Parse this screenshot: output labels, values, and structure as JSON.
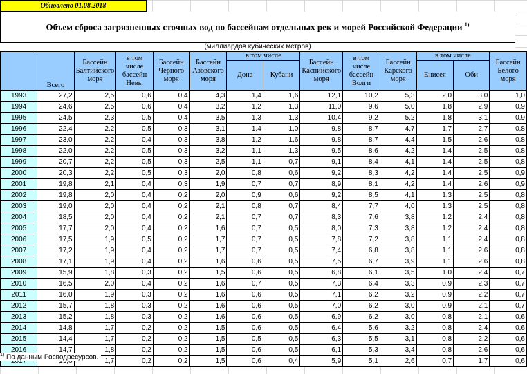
{
  "updated": "Обновлено 01.08.2018",
  "title": "Объем сброса загрязненных сточных вод по бассейнам отдельных рек и морей Российской Федерации",
  "title_note": "1)",
  "units": "(миллиардов кубических метров)",
  "headers": {
    "total": "Всего",
    "baltic": "Бассейн Балтийского моря",
    "neva": "в том числе бассейн Невы",
    "black": "Бассейн Черного моря",
    "azov": "Бассейн Азовского моря",
    "azov_group": "в том числе",
    "don": "Дона",
    "kuban": "Кубани",
    "caspian": "Бассейн Каспийского моря",
    "volga": "в том числе бассейн Волги",
    "kara": "Бассейн Карского моря",
    "kara_group": "в том числе",
    "yenisei": "Енисея",
    "ob": "Оби",
    "white": "Бассейн Белого моря"
  },
  "rows": [
    {
      "year": "1993",
      "total": "27,2",
      "baltic": "2,5",
      "neva": "0,6",
      "black": "0,4",
      "azov": "4,3",
      "don": "1,4",
      "kuban": "1,6",
      "caspian": "12,1",
      "volga": "10,2",
      "kara": "5,3",
      "yenisei": "2,0",
      "ob": "3,0",
      "white": "1,0"
    },
    {
      "year": "1994",
      "total": "24,6",
      "baltic": "2,5",
      "neva": "0,6",
      "black": "0,4",
      "azov": "3,2",
      "don": "1,2",
      "kuban": "1,3",
      "caspian": "11,0",
      "volga": "9,6",
      "kara": "5,0",
      "yenisei": "1,8",
      "ob": "2,9",
      "white": "0,9"
    },
    {
      "year": "1995",
      "total": "24,5",
      "baltic": "2,3",
      "neva": "0,5",
      "black": "0,4",
      "azov": "3,5",
      "don": "1,3",
      "kuban": "1,3",
      "caspian": "10,4",
      "volga": "9,2",
      "kara": "5,2",
      "yenisei": "1,8",
      "ob": "3,1",
      "white": "0,9"
    },
    {
      "year": "1996",
      "total": "22,4",
      "baltic": "2,2",
      "neva": "0,5",
      "black": "0,3",
      "azov": "3,1",
      "don": "1,4",
      "kuban": "1,0",
      "caspian": "9,8",
      "volga": "8,7",
      "kara": "4,7",
      "yenisei": "1,7",
      "ob": "2,7",
      "white": "0,8"
    },
    {
      "year": "1997",
      "total": "23,0",
      "baltic": "2,2",
      "neva": "0,4",
      "black": "0,3",
      "azov": "3,8",
      "don": "1,2",
      "kuban": "1,6",
      "caspian": "9,8",
      "volga": "8,7",
      "kara": "4,4",
      "yenisei": "1,5",
      "ob": "2,6",
      "white": "0,8"
    },
    {
      "year": "1998",
      "total": "22,0",
      "baltic": "2,2",
      "neva": "0,5",
      "black": "0,3",
      "azov": "3,2",
      "don": "1,1",
      "kuban": "1,3",
      "caspian": "9,5",
      "volga": "8,6",
      "kara": "4,2",
      "yenisei": "1,4",
      "ob": "2,5",
      "white": "0,8"
    },
    {
      "year": "1999",
      "total": "20,7",
      "baltic": "2,2",
      "neva": "0,5",
      "black": "0,3",
      "azov": "2,5",
      "don": "1,1",
      "kuban": "0,7",
      "caspian": "9,1",
      "volga": "8,4",
      "kara": "4,1",
      "yenisei": "1,4",
      "ob": "2,5",
      "white": "0,8"
    },
    {
      "year": "2000",
      "total": "20,3",
      "baltic": "2,2",
      "neva": "0,5",
      "black": "0,3",
      "azov": "2,0",
      "don": "0,8",
      "kuban": "0,6",
      "caspian": "9,2",
      "volga": "8,3",
      "kara": "4,2",
      "yenisei": "1,4",
      "ob": "2,5",
      "white": "0,9"
    },
    {
      "year": "2001",
      "total": "19,8",
      "baltic": "2,1",
      "neva": "0,4",
      "black": "0,3",
      "azov": "1,9",
      "don": "0,7",
      "kuban": "0,7",
      "caspian": "8,9",
      "volga": "8,1",
      "kara": "4,2",
      "yenisei": "1,4",
      "ob": "2,6",
      "white": "0,9"
    },
    {
      "year": "2002",
      "total": "19,8",
      "baltic": "2,0",
      "neva": "0,4",
      "black": "0,2",
      "azov": "2,0",
      "don": "0,9",
      "kuban": "0,6",
      "caspian": "9,2",
      "volga": "8,5",
      "kara": "4,1",
      "yenisei": "1,3",
      "ob": "2,5",
      "white": "0,8"
    },
    {
      "year": "2003",
      "total": "19,0",
      "baltic": "2,0",
      "neva": "0,4",
      "black": "0,2",
      "azov": "2,1",
      "don": "0,8",
      "kuban": "0,7",
      "caspian": "8,4",
      "volga": "7,7",
      "kara": "4,0",
      "yenisei": "1,3",
      "ob": "2,5",
      "white": "0,8"
    },
    {
      "year": "2004",
      "total": "18,5",
      "baltic": "2,0",
      "neva": "0,4",
      "black": "0,2",
      "azov": "2,1",
      "don": "0,7",
      "kuban": "0,7",
      "caspian": "8,3",
      "volga": "7,6",
      "kara": "3,8",
      "yenisei": "1,2",
      "ob": "2,4",
      "white": "0,8"
    },
    {
      "year": "2005",
      "total": "17,7",
      "baltic": "2,0",
      "neva": "0,4",
      "black": "0,2",
      "azov": "1,6",
      "don": "0,7",
      "kuban": "0,5",
      "caspian": "8,0",
      "volga": "7,3",
      "kara": "3,8",
      "yenisei": "1,2",
      "ob": "2,4",
      "white": "0,8"
    },
    {
      "year": "2006",
      "total": "17,5",
      "baltic": "1,9",
      "neva": "0,5",
      "black": "0,2",
      "azov": "1,7",
      "don": "0,7",
      "kuban": "0,5",
      "caspian": "7,8",
      "volga": "7,2",
      "kara": "3,8",
      "yenisei": "1,1",
      "ob": "2,4",
      "white": "0,8"
    },
    {
      "year": "2007",
      "total": "17,2",
      "baltic": "1,9",
      "neva": "0,4",
      "black": "0,2",
      "azov": "1,7",
      "don": "0,7",
      "kuban": "0,5",
      "caspian": "7,4",
      "volga": "6,8",
      "kara": "3,8",
      "yenisei": "1,1",
      "ob": "2,6",
      "white": "0,8"
    },
    {
      "year": "2008",
      "total": "17,1",
      "baltic": "1,9",
      "neva": "0,4",
      "black": "0,2",
      "azov": "1,6",
      "don": "0,6",
      "kuban": "0,5",
      "caspian": "7,5",
      "volga": "6,7",
      "kara": "3,9",
      "yenisei": "1,1",
      "ob": "2,6",
      "white": "0,8"
    },
    {
      "year": "2009",
      "total": "15,9",
      "baltic": "1,8",
      "neva": "0,3",
      "black": "0,2",
      "azov": "1,5",
      "don": "0,6",
      "kuban": "0,5",
      "caspian": "6,8",
      "volga": "6,1",
      "kara": "3,5",
      "yenisei": "1,0",
      "ob": "2,4",
      "white": "0,7"
    },
    {
      "year": "2010",
      "total": "16,5",
      "baltic": "2,0",
      "neva": "0,4",
      "black": "0,2",
      "azov": "1,6",
      "don": "0,7",
      "kuban": "0,5",
      "caspian": "7,3",
      "volga": "6,4",
      "kara": "3,3",
      "yenisei": "0,9",
      "ob": "2,3",
      "white": "0,7"
    },
    {
      "year": "2011",
      "total": "16,0",
      "baltic": "1,9",
      "neva": "0,3",
      "black": "0,2",
      "azov": "1,6",
      "don": "0,6",
      "kuban": "0,5",
      "caspian": "7,1",
      "volga": "6,2",
      "kara": "3,2",
      "yenisei": "0,9",
      "ob": "2,2",
      "white": "0,7"
    },
    {
      "year": "2012",
      "total": "15,7",
      "baltic": "1,8",
      "neva": "0,3",
      "black": "0,2",
      "azov": "1,6",
      "don": "0,6",
      "kuban": "0,5",
      "caspian": "7,0",
      "volga": "6,2",
      "kara": "3,0",
      "yenisei": "0,9",
      "ob": "2,1",
      "white": "0,7"
    },
    {
      "year": "2013",
      "total": "15,2",
      "baltic": "1,8",
      "neva": "0,3",
      "black": "0,2",
      "azov": "1,6",
      "don": "0,6",
      "kuban": "0,5",
      "caspian": "6,9",
      "volga": "6,2",
      "kara": "3,0",
      "yenisei": "0,8",
      "ob": "2,1",
      "white": "0,6"
    },
    {
      "year": "2014",
      "total": "14,8",
      "baltic": "1,7",
      "neva": "0,2",
      "black": "0,2",
      "azov": "1,5",
      "don": "0,6",
      "kuban": "0,5",
      "caspian": "6,4",
      "volga": "5,6",
      "kara": "3,2",
      "yenisei": "0,8",
      "ob": "2,4",
      "white": "0,6"
    },
    {
      "year": "2015",
      "total": "14,4",
      "baltic": "1,7",
      "neva": "0,2",
      "black": "0,2",
      "azov": "1,5",
      "don": "0,5",
      "kuban": "0,5",
      "caspian": "6,3",
      "volga": "5,5",
      "kara": "3,1",
      "yenisei": "0,8",
      "ob": "2,2",
      "white": "0,6"
    },
    {
      "year": "2016",
      "total": "14,7",
      "baltic": "1,8",
      "neva": "0,2",
      "black": "0,2",
      "azov": "1,5",
      "don": "0,6",
      "kuban": "0,5",
      "caspian": "6,1",
      "volga": "5,3",
      "kara": "3,4",
      "yenisei": "0,8",
      "ob": "2,6",
      "white": "0,6"
    },
    {
      "year": "2017",
      "total": "13,6",
      "baltic": "1,7",
      "neva": "0,2",
      "black": "0,2",
      "azov": "1,5",
      "don": "0,6",
      "kuban": "0,4",
      "caspian": "5,9",
      "volga": "5,1",
      "kara": "2,6",
      "yenisei": "0,7",
      "ob": "1,7",
      "white": "0,6"
    }
  ],
  "footnote": {
    "mark": "1)",
    "text": "По данным Росводресурсов."
  }
}
